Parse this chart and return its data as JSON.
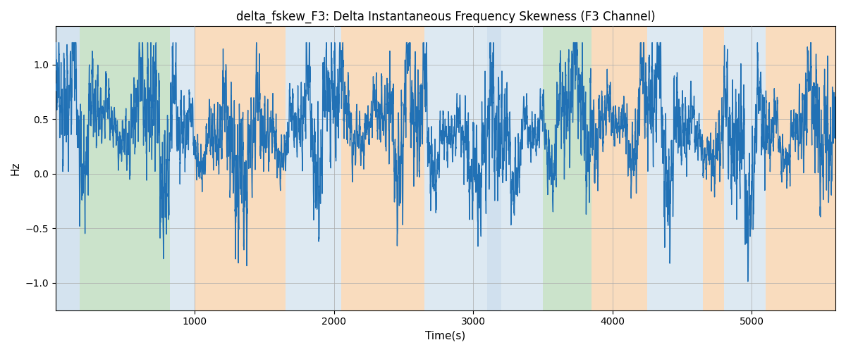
{
  "title": "delta_fskew_F3: Delta Instantaneous Frequency Skewness (F3 Channel)",
  "xlabel": "Time(s)",
  "ylabel": "Hz",
  "xlim_min": 0,
  "xlim_max": 5600,
  "ylim_min": -1.25,
  "ylim_max": 1.35,
  "line_color": "#2171b5",
  "line_width": 1.0,
  "bg_color": "#ffffff",
  "grid_color": "#aaaaaa",
  "title_fontsize": 12,
  "label_fontsize": 11,
  "regions": [
    {
      "xstart": 0,
      "xend": 175,
      "color": "#aac8e0",
      "alpha": 0.5
    },
    {
      "xstart": 175,
      "xend": 820,
      "color": "#98c898",
      "alpha": 0.5
    },
    {
      "xstart": 820,
      "xend": 1000,
      "color": "#aac8e0",
      "alpha": 0.4
    },
    {
      "xstart": 1000,
      "xend": 1650,
      "color": "#f5c08a",
      "alpha": 0.55
    },
    {
      "xstart": 1650,
      "xend": 2050,
      "color": "#aac8e0",
      "alpha": 0.4
    },
    {
      "xstart": 2050,
      "xend": 2650,
      "color": "#f5c08a",
      "alpha": 0.55
    },
    {
      "xstart": 2650,
      "xend": 3100,
      "color": "#aac8e0",
      "alpha": 0.4
    },
    {
      "xstart": 3100,
      "xend": 3200,
      "color": "#aac8e0",
      "alpha": 0.55
    },
    {
      "xstart": 3200,
      "xend": 3500,
      "color": "#aac8e0",
      "alpha": 0.4
    },
    {
      "xstart": 3500,
      "xend": 3850,
      "color": "#98c898",
      "alpha": 0.5
    },
    {
      "xstart": 3850,
      "xend": 4250,
      "color": "#f5c08a",
      "alpha": 0.55
    },
    {
      "xstart": 4250,
      "xend": 4650,
      "color": "#aac8e0",
      "alpha": 0.4
    },
    {
      "xstart": 4650,
      "xend": 4800,
      "color": "#f5c08a",
      "alpha": 0.55
    },
    {
      "xstart": 4800,
      "xend": 5100,
      "color": "#aac8e0",
      "alpha": 0.4
    },
    {
      "xstart": 5100,
      "xend": 5600,
      "color": "#f5c08a",
      "alpha": 0.55
    }
  ],
  "yticks": [
    -1.0,
    -0.5,
    0.0,
    0.5,
    1.0
  ],
  "xticks": [
    1000,
    2000,
    3000,
    4000,
    5000
  ],
  "n_samples": 5600,
  "seed": 1234
}
